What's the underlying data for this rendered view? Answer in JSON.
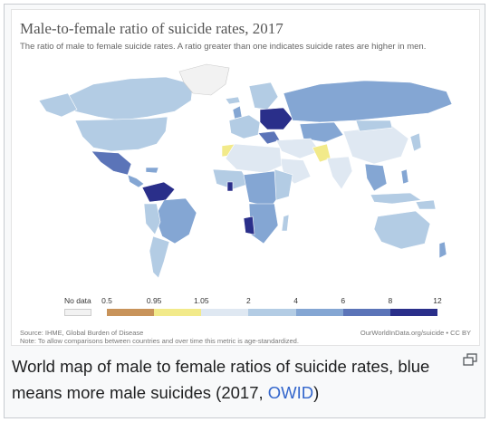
{
  "chart": {
    "title": "Male-to-female ratio of suicide rates, 2017",
    "subtitle": "The ratio of male to female suicide rates. A ratio greater than one indicates suicide rates are higher in men.",
    "source": "Source: IHME, Global Burden of Disease",
    "note": "Note: To allow comparisons between countries and over time this metric is age-standardized.",
    "brand": "OurWorldInData.org/suicide • CC BY"
  },
  "legend": {
    "no_data_label": "No data",
    "no_data_color": "#f2f2f2",
    "ticks": [
      "0.5",
      "0.95",
      "1.05",
      "2",
      "4",
      "6",
      "8",
      "12"
    ],
    "bins": [
      {
        "from": "0.5",
        "to": "0.95",
        "color": "#c8935a"
      },
      {
        "from": "0.95",
        "to": "1.05",
        "color": "#f2ea8a"
      },
      {
        "from": "1.05",
        "to": "2",
        "color": "#dfe8f2"
      },
      {
        "from": "2",
        "to": "4",
        "color": "#b3cce4"
      },
      {
        "from": "4",
        "to": "6",
        "color": "#84a6d3"
      },
      {
        "from": "6",
        "to": "8",
        "color": "#5b74b8"
      },
      {
        "from": "8",
        "to": "12",
        "color": "#2a2f8a"
      }
    ]
  },
  "caption": {
    "text": "World map of male to female ratios of suicide rates, blue means more male suicides (2017, ",
    "link": "OWID",
    "end": ")"
  },
  "colors": {
    "ocean": "#ffffff",
    "border": "#ffffff"
  }
}
